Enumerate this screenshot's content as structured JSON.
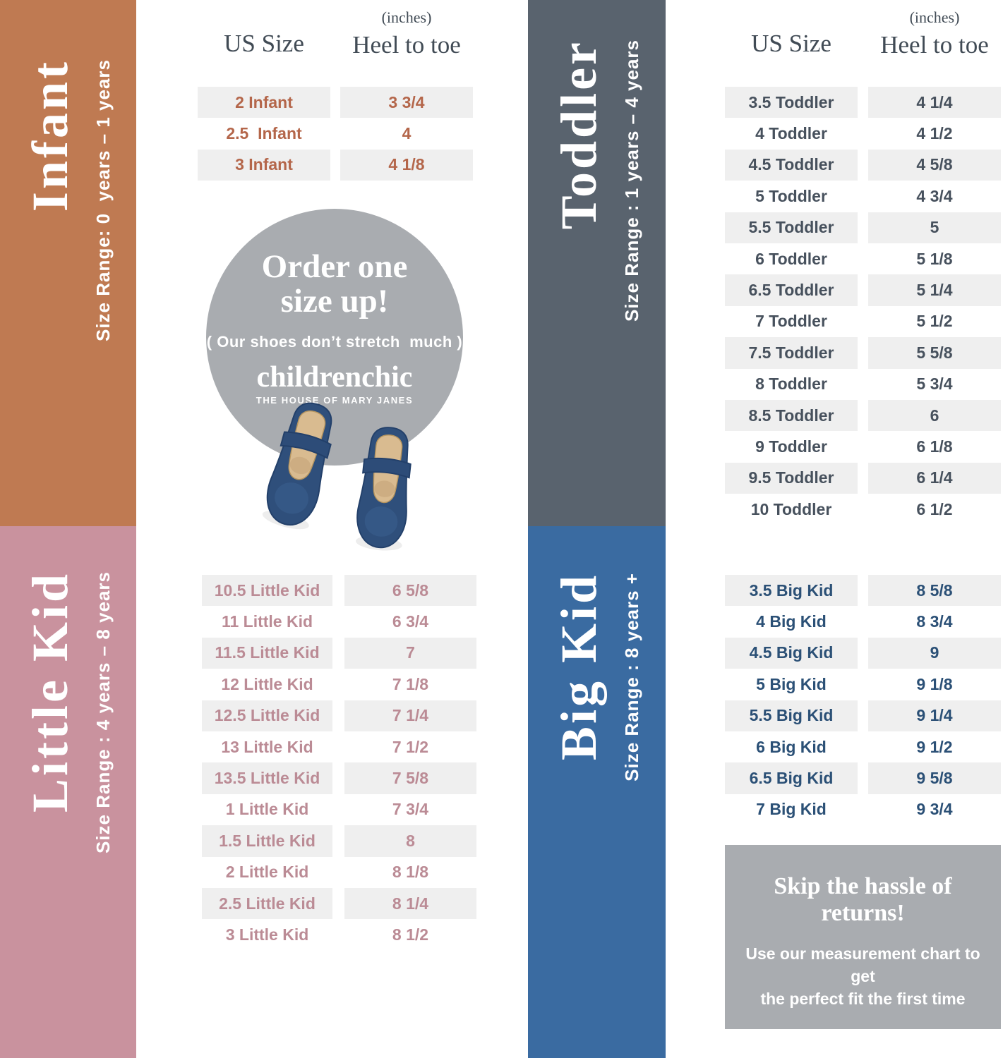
{
  "colors": {
    "infant_bar": "#bf7a52",
    "infant_text": "#b4664a",
    "toddler_bar": "#59636e",
    "toddler_text": "#47515d",
    "little_kid_bar": "#c9929e",
    "little_kid_text": "#bb8b95",
    "big_kid_bar": "#3a6ba1",
    "big_kid_text": "#2b5076",
    "stripe": "#efefef",
    "promo_gray": "#a9acb0",
    "header_text": "#414b55"
  },
  "headers": {
    "us_size": "US Size",
    "unit_note": "(inches)",
    "heel_to_toe": "Heel to toe"
  },
  "sections": {
    "infant": {
      "title": "Infant",
      "size_range": "Size Range: 0  years – 1 years",
      "rows": [
        {
          "us": "2 Infant",
          "in": "3 3/4"
        },
        {
          "us": "2.5  Infant",
          "in": "4"
        },
        {
          "us": "3 Infant",
          "in": "4 1/8"
        }
      ]
    },
    "toddler": {
      "title": "Toddler",
      "size_range": "Size Range : 1 years – 4 years",
      "rows": [
        {
          "us": "3.5 Toddler",
          "in": "4 1/4"
        },
        {
          "us": "4 Toddler",
          "in": "4 1/2"
        },
        {
          "us": "4.5 Toddler",
          "in": "4 5/8"
        },
        {
          "us": "5 Toddler",
          "in": "4 3/4"
        },
        {
          "us": "5.5 Toddler",
          "in": "5"
        },
        {
          "us": "6 Toddler",
          "in": "5 1/8"
        },
        {
          "us": "6.5 Toddler",
          "in": "5 1/4"
        },
        {
          "us": "7 Toddler",
          "in": "5 1/2"
        },
        {
          "us": "7.5 Toddler",
          "in": "5 5/8"
        },
        {
          "us": "8 Toddler",
          "in": "5 3/4"
        },
        {
          "us": "8.5 Toddler",
          "in": "6"
        },
        {
          "us": "9 Toddler",
          "in": "6 1/8"
        },
        {
          "us": "9.5 Toddler",
          "in": "6 1/4"
        },
        {
          "us": "10 Toddler",
          "in": "6 1/2"
        }
      ]
    },
    "little_kid": {
      "title": "Little Kid",
      "size_range": "Size Range : 4 years – 8 years",
      "rows": [
        {
          "us": "10.5 Little Kid",
          "in": "6 5/8"
        },
        {
          "us": "11 Little Kid",
          "in": "6 3/4"
        },
        {
          "us": "11.5 Little Kid",
          "in": "7"
        },
        {
          "us": "12 Little Kid",
          "in": "7 1/8"
        },
        {
          "us": "12.5 Little Kid",
          "in": "7 1/4"
        },
        {
          "us": "13 Little Kid",
          "in": "7 1/2"
        },
        {
          "us": "13.5 Little Kid",
          "in": "7 5/8"
        },
        {
          "us": "1 Little Kid",
          "in": "7 3/4"
        },
        {
          "us": "1.5 Little Kid",
          "in": "8"
        },
        {
          "us": "2 Little Kid",
          "in": "8 1/8"
        },
        {
          "us": "2.5 Little Kid",
          "in": "8 1/4"
        },
        {
          "us": "3 Little Kid",
          "in": "8 1/2"
        }
      ]
    },
    "big_kid": {
      "title": "Big Kid",
      "size_range": "Size Range : 8 years +",
      "rows": [
        {
          "us": "3.5 Big Kid",
          "in": "8 5/8"
        },
        {
          "us": "4 Big Kid",
          "in": "8 3/4"
        },
        {
          "us": "4.5 Big Kid",
          "in": "9"
        },
        {
          "us": "5 Big Kid",
          "in": "9 1/8"
        },
        {
          "us": "5.5 Big Kid",
          "in": "9 1/4"
        },
        {
          "us": "6 Big Kid",
          "in": "9 1/2"
        },
        {
          "us": "6.5 Big Kid",
          "in": "9 5/8"
        },
        {
          "us": "7 Big Kid",
          "in": "9 3/4"
        }
      ]
    }
  },
  "promo_circle": {
    "line1": "Order one",
    "line2": "size up!",
    "note": "( Our shoes don’t stretch  much )",
    "brand": "childrenchic",
    "brand_tagline": "THE HOUSE OF MARY JANES"
  },
  "returns_box": {
    "title": "Skip the hassle of returns!",
    "body_line1": "Use our measurement chart to get",
    "body_line2": "the perfect fit the first time"
  }
}
